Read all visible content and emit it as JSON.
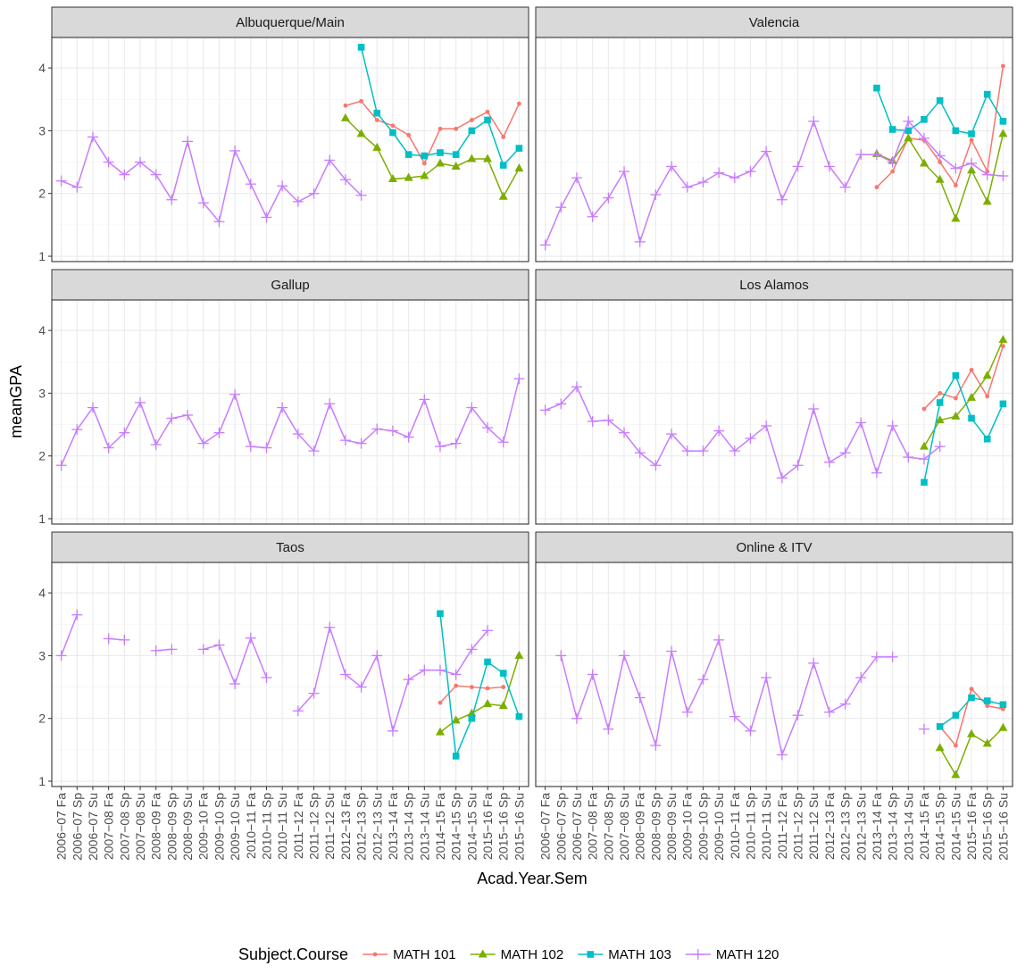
{
  "chart_data": {
    "type": "line",
    "x_label": "Acad.Year.Sem",
    "y_label": "meanGPA",
    "legend_title": "Subject.Course",
    "categories": [
      "2006−07 Fa",
      "2006−07 Sp",
      "2006−07 Su",
      "2007−08 Fa",
      "2007−08 Sp",
      "2007−08 Su",
      "2008−09 Fa",
      "2008−09 Sp",
      "2008−09 Su",
      "2009−10 Fa",
      "2009−10 Sp",
      "2009−10 Su",
      "2010−11 Fa",
      "2010−11 Sp",
      "2010−11 Su",
      "2011−12 Fa",
      "2011−12 Sp",
      "2011−12 Su",
      "2012−13 Fa",
      "2012−13 Sp",
      "2012−13 Su",
      "2013−14 Fa",
      "2013−14 Sp",
      "2013−14 Su",
      "2014−15 Fa",
      "2014−15 Sp",
      "2014−15 Su",
      "2015−16 Fa",
      "2015−16 Sp",
      "2015−16 Su"
    ],
    "ylim": [
      0.915,
      4.485
    ],
    "yticks": [
      1,
      2,
      3,
      4
    ],
    "grid": true,
    "series": [
      {
        "name": "MATH 101",
        "color": "#F8766D",
        "marker": "circle"
      },
      {
        "name": "MATH 102",
        "color": "#7CAE00",
        "marker": "triangle"
      },
      {
        "name": "MATH 103",
        "color": "#00BFC4",
        "marker": "square"
      },
      {
        "name": "MATH 120",
        "color": "#C77CFF",
        "marker": "plus"
      }
    ],
    "panels": [
      {
        "title": "Albuquerque/Main",
        "values": [
          [
            null,
            null,
            null,
            null,
            null,
            null,
            null,
            null,
            null,
            null,
            null,
            null,
            null,
            null,
            null,
            null,
            null,
            null,
            3.4,
            3.47,
            3.17,
            3.08,
            2.93,
            2.48,
            3.03,
            3.03,
            3.17,
            3.3,
            2.9,
            3.43
          ],
          [
            null,
            null,
            null,
            null,
            null,
            null,
            null,
            null,
            null,
            null,
            null,
            null,
            null,
            null,
            null,
            null,
            null,
            null,
            3.2,
            2.95,
            2.73,
            2.23,
            2.25,
            2.28,
            2.48,
            2.43,
            2.55,
            2.55,
            1.95,
            2.4
          ],
          [
            null,
            null,
            null,
            null,
            null,
            null,
            null,
            null,
            null,
            null,
            null,
            null,
            null,
            null,
            null,
            null,
            null,
            null,
            null,
            4.33,
            3.28,
            2.97,
            2.62,
            2.6,
            2.65,
            2.62,
            3.0,
            3.17,
            2.45,
            2.72
          ],
          [
            2.2,
            2.1,
            2.9,
            2.5,
            2.3,
            2.5,
            2.3,
            1.9,
            2.83,
            1.85,
            1.55,
            2.68,
            2.15,
            1.62,
            2.12,
            1.87,
            2.0,
            2.53,
            2.22,
            1.97,
            null,
            null,
            null,
            null,
            null,
            null,
            null,
            null,
            null,
            null
          ]
        ]
      },
      {
        "title": "Valencia",
        "values": [
          [
            null,
            null,
            null,
            null,
            null,
            null,
            null,
            null,
            null,
            null,
            null,
            null,
            null,
            null,
            null,
            null,
            null,
            null,
            null,
            null,
            null,
            2.1,
            2.35,
            2.88,
            2.85,
            2.5,
            2.13,
            2.85,
            2.35,
            4.03
          ],
          [
            null,
            null,
            null,
            null,
            null,
            null,
            null,
            null,
            null,
            null,
            null,
            null,
            null,
            null,
            null,
            null,
            null,
            null,
            null,
            null,
            null,
            2.63,
            2.52,
            2.88,
            2.48,
            2.22,
            1.6,
            2.37,
            1.87,
            2.95
          ],
          [
            null,
            null,
            null,
            null,
            null,
            null,
            null,
            null,
            null,
            null,
            null,
            null,
            null,
            null,
            null,
            null,
            null,
            null,
            null,
            null,
            null,
            3.68,
            3.02,
            3.0,
            3.18,
            3.48,
            3.0,
            2.95,
            3.58,
            3.15
          ],
          [
            1.18,
            1.78,
            2.25,
            1.63,
            1.93,
            2.35,
            1.23,
            1.98,
            2.43,
            2.1,
            2.18,
            2.33,
            2.25,
            2.35,
            2.67,
            1.9,
            2.43,
            3.15,
            2.43,
            2.1,
            2.62,
            2.62,
            2.5,
            3.15,
            2.88,
            2.6,
            2.4,
            2.48,
            2.3,
            2.28
          ]
        ]
      },
      {
        "title": "Gallup",
        "values": [
          [
            null,
            null,
            null,
            null,
            null,
            null,
            null,
            null,
            null,
            null,
            null,
            null,
            null,
            null,
            null,
            null,
            null,
            null,
            null,
            null,
            null,
            null,
            null,
            null,
            null,
            null,
            null,
            null,
            null,
            null
          ],
          [
            null,
            null,
            null,
            null,
            null,
            null,
            null,
            null,
            null,
            null,
            null,
            null,
            null,
            null,
            null,
            null,
            null,
            null,
            null,
            null,
            null,
            null,
            null,
            null,
            null,
            null,
            null,
            null,
            null,
            null
          ],
          [
            null,
            null,
            null,
            null,
            null,
            null,
            null,
            null,
            null,
            null,
            null,
            null,
            null,
            null,
            null,
            null,
            null,
            null,
            null,
            null,
            null,
            null,
            null,
            null,
            null,
            null,
            null,
            null,
            null,
            null
          ],
          [
            1.85,
            2.42,
            2.77,
            2.13,
            2.37,
            2.85,
            2.18,
            2.6,
            2.65,
            2.2,
            2.37,
            2.98,
            2.15,
            2.13,
            2.77,
            2.35,
            2.08,
            2.83,
            2.25,
            2.2,
            2.43,
            2.4,
            2.3,
            2.9,
            2.15,
            2.2,
            2.77,
            2.45,
            2.22,
            3.23
          ]
        ]
      },
      {
        "title": "Los Alamos",
        "values": [
          [
            null,
            null,
            null,
            null,
            null,
            null,
            null,
            null,
            null,
            null,
            null,
            null,
            null,
            null,
            null,
            null,
            null,
            null,
            null,
            null,
            null,
            null,
            null,
            null,
            2.75,
            3.0,
            2.92,
            3.37,
            2.95,
            3.75
          ],
          [
            null,
            null,
            null,
            null,
            null,
            null,
            null,
            null,
            null,
            null,
            null,
            null,
            null,
            null,
            null,
            null,
            null,
            null,
            null,
            null,
            null,
            null,
            null,
            null,
            2.15,
            2.57,
            2.63,
            2.93,
            3.28,
            3.85
          ],
          [
            null,
            null,
            null,
            null,
            null,
            null,
            null,
            null,
            null,
            null,
            null,
            null,
            null,
            null,
            null,
            null,
            null,
            null,
            null,
            null,
            null,
            null,
            null,
            null,
            1.58,
            2.85,
            3.28,
            2.6,
            2.27,
            2.83
          ],
          [
            2.73,
            2.83,
            3.1,
            2.55,
            2.57,
            2.37,
            2.05,
            1.85,
            2.35,
            2.08,
            2.08,
            2.4,
            2.08,
            2.28,
            2.48,
            1.65,
            1.85,
            2.75,
            1.9,
            2.05,
            2.53,
            1.73,
            2.48,
            1.98,
            1.95,
            2.15,
            null,
            null,
            null,
            null
          ]
        ]
      },
      {
        "title": "Taos",
        "values": [
          [
            null,
            null,
            null,
            null,
            null,
            null,
            null,
            null,
            null,
            null,
            null,
            null,
            null,
            null,
            null,
            null,
            null,
            null,
            null,
            null,
            null,
            null,
            null,
            null,
            2.25,
            2.52,
            2.5,
            2.48,
            2.5,
            null
          ],
          [
            null,
            null,
            null,
            null,
            null,
            null,
            null,
            null,
            null,
            null,
            null,
            null,
            null,
            null,
            null,
            null,
            null,
            null,
            null,
            null,
            null,
            null,
            null,
            null,
            1.78,
            1.97,
            2.08,
            2.23,
            2.2,
            3.0
          ],
          [
            null,
            null,
            null,
            null,
            null,
            null,
            null,
            null,
            null,
            null,
            null,
            null,
            null,
            null,
            null,
            null,
            null,
            null,
            null,
            null,
            null,
            null,
            null,
            null,
            3.67,
            1.4,
            2.0,
            2.9,
            2.72,
            2.03
          ],
          [
            3.0,
            3.65,
            null,
            3.27,
            3.25,
            null,
            3.08,
            3.1,
            null,
            3.1,
            3.17,
            2.55,
            3.28,
            2.65,
            null,
            2.12,
            2.4,
            3.45,
            2.7,
            2.5,
            3.0,
            1.8,
            2.62,
            2.77,
            2.77,
            2.7,
            3.1,
            3.4,
            null,
            null
          ]
        ]
      },
      {
        "title": "Online & ITV",
        "values": [
          [
            null,
            null,
            null,
            null,
            null,
            null,
            null,
            null,
            null,
            null,
            null,
            null,
            null,
            null,
            null,
            null,
            null,
            null,
            null,
            null,
            null,
            null,
            null,
            null,
            null,
            1.87,
            1.57,
            2.47,
            2.2,
            2.15
          ],
          [
            null,
            null,
            null,
            null,
            null,
            null,
            null,
            null,
            null,
            null,
            null,
            null,
            null,
            null,
            null,
            null,
            null,
            null,
            null,
            null,
            null,
            null,
            null,
            null,
            null,
            1.53,
            1.1,
            1.75,
            1.6,
            1.85
          ],
          [
            null,
            null,
            null,
            null,
            null,
            null,
            null,
            null,
            null,
            null,
            null,
            null,
            null,
            null,
            null,
            null,
            null,
            null,
            null,
            null,
            null,
            null,
            null,
            null,
            null,
            1.87,
            2.05,
            2.33,
            2.28,
            2.22
          ],
          [
            null,
            3.0,
            2.0,
            2.7,
            1.83,
            3.0,
            2.33,
            1.57,
            3.07,
            2.1,
            2.62,
            3.25,
            2.03,
            1.8,
            2.65,
            1.42,
            2.05,
            2.88,
            2.1,
            2.23,
            2.65,
            2.98,
            2.98,
            null,
            1.83,
            null,
            null,
            null,
            null,
            null
          ]
        ]
      }
    ]
  }
}
